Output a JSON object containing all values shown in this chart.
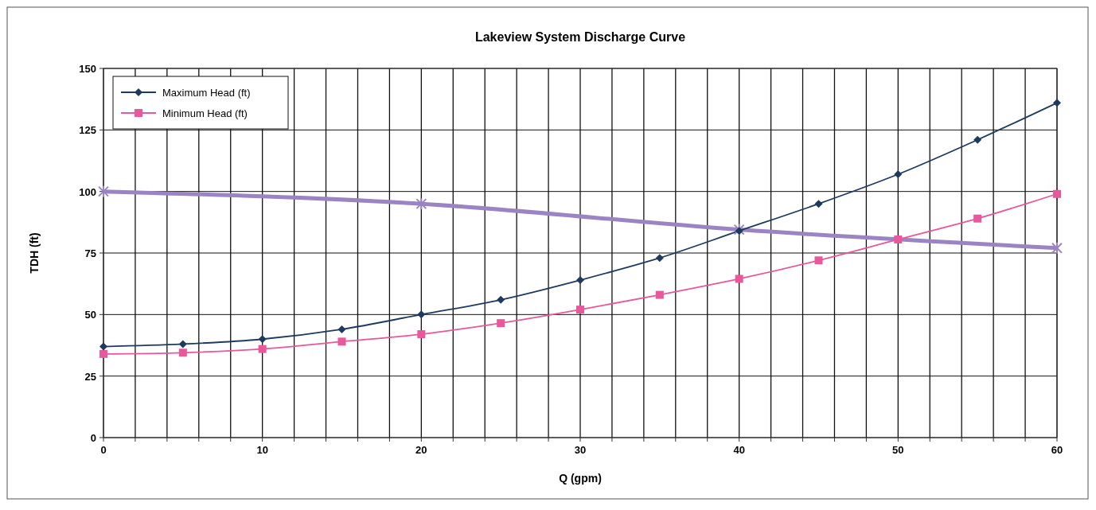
{
  "chart_data": {
    "type": "line",
    "title": "Lakeview System Discharge Curve",
    "xlabel": "Q (gpm)",
    "ylabel": "TDH (ft)",
    "xlim": [
      0,
      60
    ],
    "ylim": [
      0,
      150
    ],
    "xticks": [
      0,
      {
        "value": 2,
        "label": null
      },
      {
        "value": 4,
        "label": null
      },
      {
        "value": 6,
        "label": null
      },
      {
        "value": 8,
        "label": null
      },
      10,
      {
        "value": 12,
        "label": null
      },
      {
        "value": 14,
        "label": null
      },
      {
        "value": 16,
        "label": null
      },
      {
        "value": 18,
        "label": null
      },
      20,
      {
        "value": 22,
        "label": null
      },
      {
        "value": 24,
        "label": null
      },
      {
        "value": 26,
        "label": null
      },
      {
        "value": 28,
        "label": null
      },
      30,
      {
        "value": 32,
        "label": null
      },
      {
        "value": 34,
        "label": null
      },
      {
        "value": 36,
        "label": null
      },
      {
        "value": 38,
        "label": null
      },
      40,
      {
        "value": 42,
        "label": null
      },
      {
        "value": 44,
        "label": null
      },
      {
        "value": 46,
        "label": null
      },
      {
        "value": 48,
        "label": null
      },
      50,
      {
        "value": 52,
        "label": null
      },
      {
        "value": 54,
        "label": null
      },
      {
        "value": 56,
        "label": null
      },
      {
        "value": 58,
        "label": null
      },
      60
    ],
    "yticks": [
      0,
      25,
      50,
      75,
      100,
      125,
      150
    ],
    "grid": true,
    "legend": "top left",
    "x": [
      0,
      5,
      10,
      15,
      20,
      25,
      30,
      35,
      40,
      45,
      50,
      55,
      60
    ],
    "series": [
      {
        "name": "Maximum Head (ft)",
        "color": "#1f3a5f",
        "marker": "diamond",
        "values": [
          37,
          38,
          40,
          44,
          50,
          56,
          64,
          73,
          84,
          95,
          107,
          121,
          136
        ]
      },
      {
        "name": "Minimum Head (ft)",
        "color": "#e8589a",
        "marker": "square",
        "values": [
          34,
          34.5,
          36,
          39,
          42,
          46.5,
          52,
          58,
          64.5,
          72,
          80.5,
          89,
          99
        ]
      },
      {
        "color": "#9b84c4",
        "marker": "cross",
        "x": [
          0,
          20,
          40,
          60
        ],
        "values": [
          100,
          95,
          84.5,
          77
        ]
      }
    ]
  }
}
